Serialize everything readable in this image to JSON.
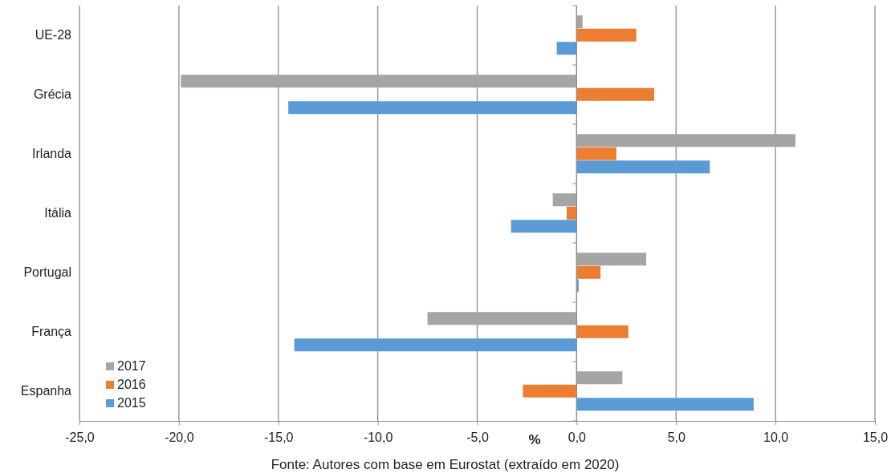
{
  "chart_data": {
    "type": "bar",
    "orientation": "horizontal",
    "categories": [
      "UE-28",
      "Grécia",
      "Irlanda",
      "Itália",
      "Portugal",
      "França",
      "Espanha"
    ],
    "series": [
      {
        "name": "2017",
        "color": "#a5a5a5",
        "values": [
          0.3,
          -19.9,
          11.0,
          -1.2,
          3.5,
          -7.5,
          2.3
        ]
      },
      {
        "name": "2016",
        "color": "#ed7d31",
        "values": [
          3.0,
          3.9,
          2.0,
          -0.5,
          1.2,
          2.6,
          -2.7
        ]
      },
      {
        "name": "2015",
        "color": "#5b9bd5",
        "values": [
          -1.0,
          -14.5,
          6.7,
          -3.3,
          0.1,
          -14.2,
          8.9
        ]
      }
    ],
    "xlim": [
      -25,
      15
    ],
    "xticks": [
      {
        "value": -25,
        "label": "-25,0"
      },
      {
        "value": -20,
        "label": "-20,0"
      },
      {
        "value": -15,
        "label": "-15,0"
      },
      {
        "value": -10,
        "label": "-10,0"
      },
      {
        "value": -5,
        "label": "-5,0"
      },
      {
        "value": 0,
        "label": "0,0"
      },
      {
        "value": 5,
        "label": "5,0"
      },
      {
        "value": 10,
        "label": "10,0"
      },
      {
        "value": 15,
        "label": "15,0"
      }
    ],
    "xlabel": "%",
    "annotations": [
      "Fonte: Autores com base em Eurostat (extraído em 2020)"
    ],
    "grid": "x",
    "legend": "bottom left"
  }
}
